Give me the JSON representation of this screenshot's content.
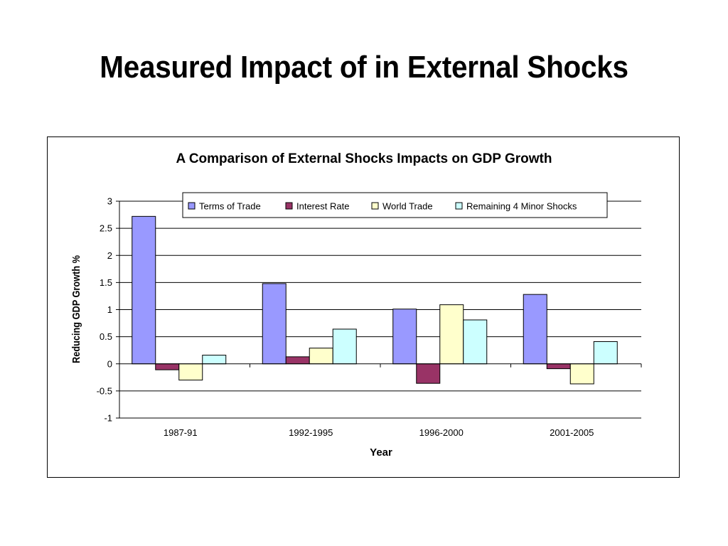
{
  "slide": {
    "title": "Measured Impact of in External Shocks"
  },
  "chart_data": {
    "type": "bar",
    "title": "A Comparison of External Shocks Impacts on GDP Growth",
    "xlabel": "Year",
    "ylabel": "Reducing GDP Growth %",
    "categories": [
      "1987-91",
      "1992-1995",
      "1996-2000",
      "2001-2005"
    ],
    "ylim": [
      -1,
      3
    ],
    "yticks": [
      -1,
      -0.5,
      0,
      0.5,
      1,
      1.5,
      2,
      2.5,
      3
    ],
    "grid": true,
    "legend_position": "top",
    "series": [
      {
        "name": "Terms of Trade",
        "color": "#9999ff",
        "values": [
          2.72,
          1.48,
          1.01,
          1.28
        ]
      },
      {
        "name": "Interest Rate",
        "color": "#993366",
        "values": [
          -0.11,
          0.13,
          -0.36,
          -0.09
        ]
      },
      {
        "name": "World Trade",
        "color": "#ffffcc",
        "values": [
          -0.3,
          0.29,
          1.09,
          -0.37
        ]
      },
      {
        "name": "Remaining 4 Minor Shocks",
        "color": "#ccffff",
        "values": [
          0.16,
          0.64,
          0.81,
          0.41
        ]
      }
    ]
  }
}
